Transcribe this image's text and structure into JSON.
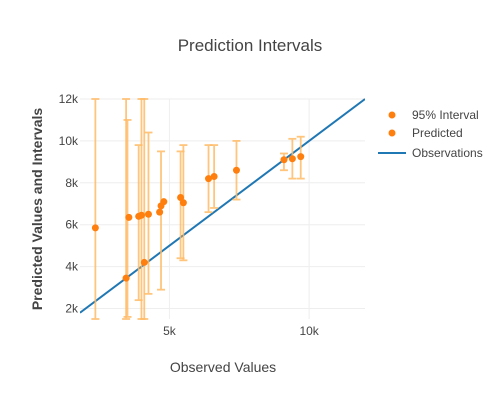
{
  "chart_data": {
    "type": "scatter",
    "title": "Prediction Intervals",
    "xlabel": "Observed Values",
    "ylabel": "Predicted Values and Intervals",
    "xlim": [
      1800,
      12000
    ],
    "ylim": [
      1500,
      12000
    ],
    "x_ticks": [
      {
        "value": 5000,
        "label": "5k"
      },
      {
        "value": 10000,
        "label": "10k"
      }
    ],
    "y_ticks": [
      {
        "value": 2000,
        "label": "2k"
      },
      {
        "value": 4000,
        "label": "4k"
      },
      {
        "value": 6000,
        "label": "6k"
      },
      {
        "value": 8000,
        "label": "8k"
      },
      {
        "value": 10000,
        "label": "10k"
      },
      {
        "value": 12000,
        "label": "12k"
      }
    ],
    "grid": true,
    "legend_position": "top-right",
    "series": [
      {
        "name": "95% Interval",
        "kind": "error_bars",
        "color": "#ffbb66",
        "points": [
          {
            "x": 2350,
            "low": 1500,
            "high": 12000
          },
          {
            "x": 3450,
            "low": 1500,
            "high": 12000
          },
          {
            "x": 3500,
            "low": 1600,
            "high": 11000
          },
          {
            "x": 3900,
            "low": 2400,
            "high": 9800
          },
          {
            "x": 4000,
            "low": 1500,
            "high": 12000
          },
          {
            "x": 4100,
            "low": 1500,
            "high": 12000
          },
          {
            "x": 4250,
            "low": 2700,
            "high": 10400
          },
          {
            "x": 4700,
            "low": 2900,
            "high": 9500
          },
          {
            "x": 5400,
            "low": 4400,
            "high": 9500
          },
          {
            "x": 5500,
            "low": 4300,
            "high": 9800
          },
          {
            "x": 6400,
            "low": 6600,
            "high": 9800
          },
          {
            "x": 6600,
            "low": 6800,
            "high": 9800
          },
          {
            "x": 7400,
            "low": 7200,
            "high": 10000
          },
          {
            "x": 9100,
            "low": 8600,
            "high": 9400
          },
          {
            "x": 9400,
            "low": 8200,
            "high": 10100
          },
          {
            "x": 9700,
            "low": 8200,
            "high": 10200
          }
        ]
      },
      {
        "name": "Predicted",
        "kind": "markers",
        "color": "#ff7f0e",
        "points": [
          {
            "x": 2350,
            "y": 5850
          },
          {
            "x": 3450,
            "y": 3450
          },
          {
            "x": 3550,
            "y": 6350
          },
          {
            "x": 3900,
            "y": 6400
          },
          {
            "x": 4000,
            "y": 6450
          },
          {
            "x": 4100,
            "y": 4200
          },
          {
            "x": 4250,
            "y": 6500
          },
          {
            "x": 4650,
            "y": 6600
          },
          {
            "x": 4700,
            "y": 6900
          },
          {
            "x": 4800,
            "y": 7100
          },
          {
            "x": 5400,
            "y": 7300
          },
          {
            "x": 5500,
            "y": 7050
          },
          {
            "x": 6400,
            "y": 8200
          },
          {
            "x": 6600,
            "y": 8300
          },
          {
            "x": 7400,
            "y": 8600
          },
          {
            "x": 9100,
            "y": 9100
          },
          {
            "x": 9400,
            "y": 9150
          },
          {
            "x": 9700,
            "y": 9250
          }
        ]
      },
      {
        "name": "Observations",
        "kind": "line",
        "color": "#1f77b4",
        "points": [
          {
            "x": 1800,
            "y": 1800
          },
          {
            "x": 12000,
            "y": 12000
          }
        ]
      }
    ]
  }
}
